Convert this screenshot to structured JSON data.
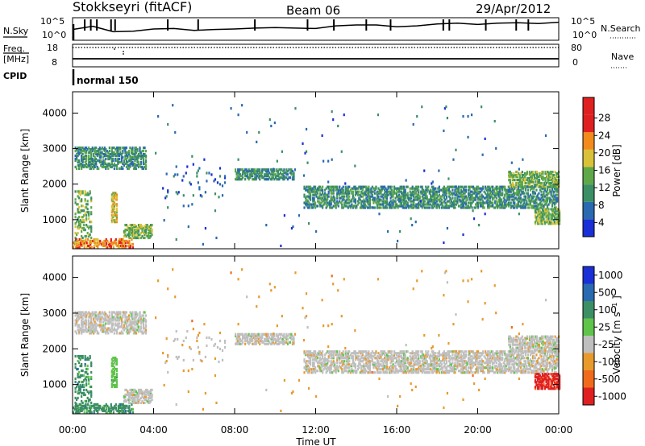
{
  "header": {
    "station": "Stokkseyri (fitACF)",
    "beam": "Beam 06",
    "date": "29/Apr/2012"
  },
  "left_labels": {
    "nsky": "N.Sky",
    "freq_line1": "Freq.",
    "freq_line2": "[MHz]",
    "cpid": "CPID"
  },
  "right_labels": {
    "nsearch": "N.Search",
    "nave": "Nave"
  },
  "cpid_text": "normal 150",
  "x_axis": {
    "label": "Time UT",
    "ticks": [
      "00:00",
      "04:00",
      "08:00",
      "12:00",
      "16:00",
      "20:00",
      "00:00"
    ]
  },
  "chart_data": [
    {
      "type": "line",
      "panel": "noise",
      "ylim_ticks": [
        "10^5",
        "10^0"
      ],
      "right_ticks": [
        "10^5",
        "10^0"
      ],
      "series": [
        {
          "name": "N.Sky",
          "values": [
            2.4,
            3.1,
            1.9,
            2.0,
            2.5,
            2.6,
            2.2,
            2.4,
            2.5,
            2.7,
            2.8,
            2.7,
            2.6,
            3.2,
            3.4,
            3.4,
            3.0,
            3.2,
            3.6,
            3.8,
            3.5,
            3.8,
            3.9,
            3.7,
            4.0
          ]
        }
      ],
      "spikes_hours": [
        0.6,
        0.9,
        1.2,
        1.9,
        2.1,
        4.7,
        6.2,
        9.0,
        11.6,
        12.9,
        14.5,
        15.7,
        18.3,
        18.6,
        20.4,
        21.9,
        22.5
      ]
    },
    {
      "type": "line",
      "panel": "frequency",
      "left_ticks": [
        "18",
        "8"
      ],
      "right_ticks": [
        "80",
        "0"
      ],
      "series": [
        {
          "name": "Freq.",
          "values": [
            17.9,
            17.9
          ]
        },
        {
          "name": "Nave",
          "values": [
            2,
            2
          ]
        }
      ]
    },
    {
      "type": "heatmap",
      "panel": "power",
      "ylabel": "Slant Range [km]",
      "yticks": [
        1000,
        2000,
        3000,
        4000
      ],
      "ylim": [
        180,
        4600
      ],
      "xlim_hours": [
        0,
        24
      ],
      "colorbar": {
        "label": "Power [dB]",
        "ticks": [
          4,
          8,
          12,
          16,
          20,
          24,
          28
        ],
        "colors": [
          "#1a2fd6",
          "#2a6ab0",
          "#3c8f64",
          "#5fa84a",
          "#d9c23a",
          "#f28a1c",
          "#e02020"
        ]
      }
    },
    {
      "type": "heatmap",
      "panel": "velocity",
      "ylabel": "Slant Range [km]",
      "yticks": [
        1000,
        2000,
        3000,
        4000
      ],
      "ylim": [
        180,
        4600
      ],
      "xlim_hours": [
        0,
        24
      ],
      "colorbar": {
        "label": "Velocity [m s-1]",
        "ticks": [
          1000,
          500,
          100,
          25,
          -25,
          -100,
          -500,
          -1000
        ],
        "colors": [
          "#1a2fd6",
          "#2a6ab0",
          "#3c8f64",
          "#5fc44a",
          "#bfbfbf",
          "#e89a2c",
          "#f06a1c",
          "#e02020"
        ]
      }
    }
  ],
  "scatter_regions": [
    {
      "t0": 0.1,
      "t1": 3.6,
      "r0": 2400,
      "r1": 3000,
      "p": 0.55,
      "pw": 2,
      "vel": 4
    },
    {
      "t0": 0.1,
      "t1": 0.9,
      "r0": 180,
      "r1": 1800,
      "p": 0.3,
      "pw": 3,
      "vel": 2
    },
    {
      "t0": 1.9,
      "t1": 2.2,
      "r0": 900,
      "r1": 1750,
      "p": 0.7,
      "pw": 4,
      "vel": 3
    },
    {
      "t0": 2.5,
      "t1": 3.9,
      "r0": 450,
      "r1": 850,
      "p": 0.6,
      "pw": 3,
      "vel": 4
    },
    {
      "t0": 0.0,
      "t1": 3.0,
      "r0": 180,
      "r1": 450,
      "p": 0.5,
      "pw": 5,
      "vel": 2
    },
    {
      "t0": 4.6,
      "t1": 7.5,
      "r0": 1600,
      "r1": 2500,
      "p": 0.04,
      "pw": 1,
      "vel": 4
    },
    {
      "t0": 8.0,
      "t1": 11.0,
      "r0": 2100,
      "r1": 2400,
      "p": 0.6,
      "pw": 2,
      "vel": 4
    },
    {
      "t0": 11.4,
      "t1": 23.9,
      "r0": 1300,
      "r1": 1900,
      "p": 0.55,
      "pw": 2,
      "vel": 4
    },
    {
      "t0": 21.5,
      "t1": 24.0,
      "r0": 1900,
      "r1": 2350,
      "p": 0.55,
      "pw": 3,
      "vel": 4
    },
    {
      "t0": 22.8,
      "t1": 24.0,
      "r0": 850,
      "r1": 1300,
      "p": 0.65,
      "pw": 3,
      "vel": 7
    },
    {
      "t0": 4.0,
      "t1": 23.5,
      "r0": 180,
      "r1": 4200,
      "p": 0.004,
      "pw": 1,
      "vel": 5
    }
  ]
}
